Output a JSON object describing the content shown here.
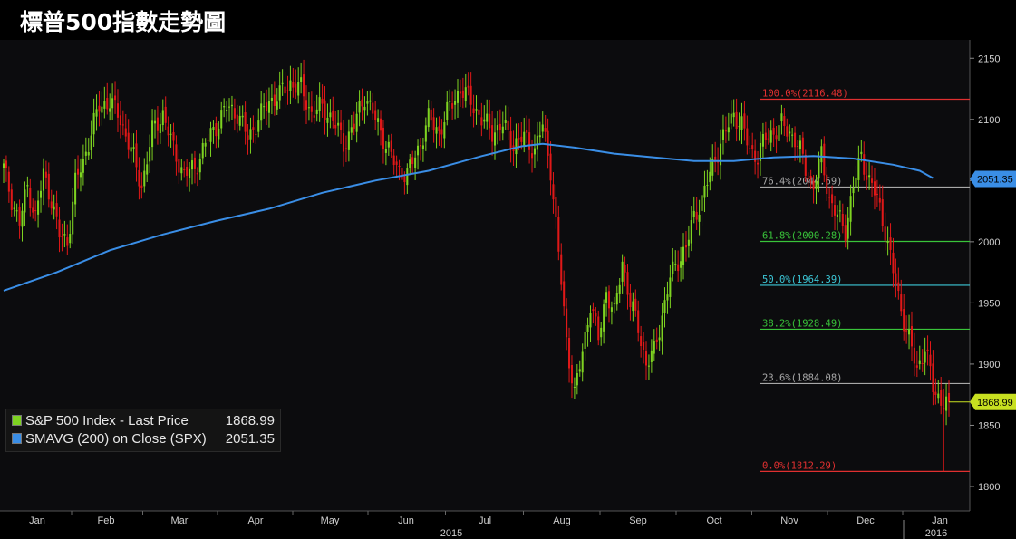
{
  "title": "標普500指數走勢圖",
  "colors": {
    "background": "#000000",
    "plot_background": "#0c0c0e",
    "up_candle": "#7ed321",
    "down_candle": "#e01818",
    "sma": "#3a8ee6",
    "fib_red": "#e03030",
    "fib_grey": "#a8a8a8",
    "fib_green": "#39c43a",
    "fib_cyan": "#3cc8d8",
    "price_tag": "#c8e020",
    "sma_tag": "#3a8ee6"
  },
  "legend": {
    "price_label": "S&P 500 Index - Last Price",
    "price_value": "1868.99",
    "sma_label": "SMAVG (200) on Close (SPX)",
    "sma_value": "2051.35"
  },
  "chart_data": {
    "type": "candlestick",
    "ylim": [
      1780,
      2165
    ],
    "yticks": [
      1800,
      1850,
      1900,
      1950,
      2000,
      2050,
      2100,
      2150
    ],
    "x_months": [
      "Jan",
      "Feb",
      "Mar",
      "Apr",
      "May",
      "Jun",
      "Jul",
      "Aug",
      "Sep",
      "Oct",
      "Nov",
      "Dec",
      "Jan"
    ],
    "year_labels": [
      "2015",
      "2016"
    ],
    "last_price": 1868.99,
    "last_price_label": "1868.99",
    "sma_last": 2051.35,
    "sma_last_label": "2051.35",
    "fib_levels": [
      {
        "label": "100.0%(2116.48)",
        "value": 2116.48,
        "color": "red"
      },
      {
        "label": "76.4%(2044.69)",
        "value": 2044.69,
        "color": "grey"
      },
      {
        "label": "61.8%(2000.28)",
        "value": 2000.28,
        "color": "green"
      },
      {
        "label": "50.0%(1964.39)",
        "value": 1964.39,
        "color": "cyan"
      },
      {
        "label": "38.2%(1928.49)",
        "value": 1928.49,
        "color": "green"
      },
      {
        "label": "23.6%(1884.08)",
        "value": 1884.08,
        "color": "grey"
      },
      {
        "label": "0.0%(1812.29)",
        "value": 1812.29,
        "color": "red"
      }
    ],
    "close_path": [
      [
        0,
        2060
      ],
      [
        3,
        2035
      ],
      [
        6,
        2015
      ],
      [
        9,
        2045
      ],
      [
        12,
        2020
      ],
      [
        15,
        2055
      ],
      [
        18,
        2035
      ],
      [
        21,
        2005
      ],
      [
        24,
        2000
      ],
      [
        27,
        2048
      ],
      [
        30,
        2065
      ],
      [
        33,
        2090
      ],
      [
        36,
        2110
      ],
      [
        40,
        2115
      ],
      [
        44,
        2100
      ],
      [
        48,
        2075
      ],
      [
        52,
        2045
      ],
      [
        56,
        2090
      ],
      [
        60,
        2105
      ],
      [
        64,
        2075
      ],
      [
        68,
        2055
      ],
      [
        72,
        2060
      ],
      [
        76,
        2080
      ],
      [
        80,
        2095
      ],
      [
        84,
        2110
      ],
      [
        88,
        2105
      ],
      [
        92,
        2085
      ],
      [
        96,
        2100
      ],
      [
        100,
        2115
      ],
      [
        104,
        2120
      ],
      [
        108,
        2130
      ],
      [
        112,
        2125
      ],
      [
        116,
        2105
      ],
      [
        120,
        2110
      ],
      [
        124,
        2100
      ],
      [
        128,
        2080
      ],
      [
        132,
        2095
      ],
      [
        136,
        2120
      ],
      [
        140,
        2100
      ],
      [
        144,
        2080
      ],
      [
        148,
        2060
      ],
      [
        152,
        2055
      ],
      [
        156,
        2075
      ],
      [
        160,
        2100
      ],
      [
        164,
        2090
      ],
      [
        168,
        2110
      ],
      [
        172,
        2125
      ],
      [
        176,
        2115
      ],
      [
        180,
        2100
      ],
      [
        184,
        2090
      ],
      [
        188,
        2095
      ],
      [
        192,
        2080
      ],
      [
        196,
        2085
      ],
      [
        200,
        2075
      ],
      [
        203,
        2095
      ],
      [
        206,
        2060
      ],
      [
        209,
        1990
      ],
      [
        212,
        1920
      ],
      [
        215,
        1875
      ],
      [
        218,
        1910
      ],
      [
        221,
        1950
      ],
      [
        224,
        1920
      ],
      [
        227,
        1960
      ],
      [
        230,
        1940
      ],
      [
        233,
        1985
      ],
      [
        236,
        1950
      ],
      [
        239,
        1930
      ],
      [
        242,
        1900
      ],
      [
        245,
        1910
      ],
      [
        248,
        1940
      ],
      [
        251,
        1970
      ],
      [
        254,
        1985
      ],
      [
        257,
        1995
      ],
      [
        260,
        2020
      ],
      [
        263,
        2035
      ],
      [
        266,
        2055
      ],
      [
        269,
        2075
      ],
      [
        272,
        2090
      ],
      [
        275,
        2105
      ],
      [
        278,
        2095
      ],
      [
        281,
        2075
      ],
      [
        284,
        2070
      ],
      [
        287,
        2085
      ],
      [
        290,
        2090
      ],
      [
        293,
        2095
      ],
      [
        296,
        2090
      ],
      [
        299,
        2080
      ],
      [
        302,
        2060
      ],
      [
        305,
        2045
      ],
      [
        308,
        2070
      ],
      [
        311,
        2035
      ],
      [
        314,
        2020
      ],
      [
        317,
        2010
      ],
      [
        320,
        2045
      ],
      [
        323,
        2070
      ],
      [
        326,
        2050
      ],
      [
        329,
        2035
      ],
      [
        332,
        2010
      ],
      [
        335,
        1975
      ],
      [
        338,
        1945
      ],
      [
        341,
        1920
      ],
      [
        344,
        1895
      ],
      [
        347,
        1915
      ],
      [
        350,
        1880
      ],
      [
        353,
        1870
      ],
      [
        356,
        1868.99
      ]
    ],
    "sma_path": [
      [
        0,
        1960
      ],
      [
        20,
        1975
      ],
      [
        40,
        1993
      ],
      [
        60,
        2006
      ],
      [
        80,
        2017
      ],
      [
        100,
        2027
      ],
      [
        120,
        2040
      ],
      [
        140,
        2050
      ],
      [
        160,
        2058
      ],
      [
        180,
        2070
      ],
      [
        195,
        2078
      ],
      [
        203,
        2080
      ],
      [
        215,
        2077
      ],
      [
        230,
        2072
      ],
      [
        245,
        2069
      ],
      [
        260,
        2066
      ],
      [
        275,
        2066
      ],
      [
        290,
        2069
      ],
      [
        305,
        2070
      ],
      [
        320,
        2068
      ],
      [
        335,
        2063
      ],
      [
        345,
        2058
      ],
      [
        350,
        2052
      ]
    ]
  }
}
